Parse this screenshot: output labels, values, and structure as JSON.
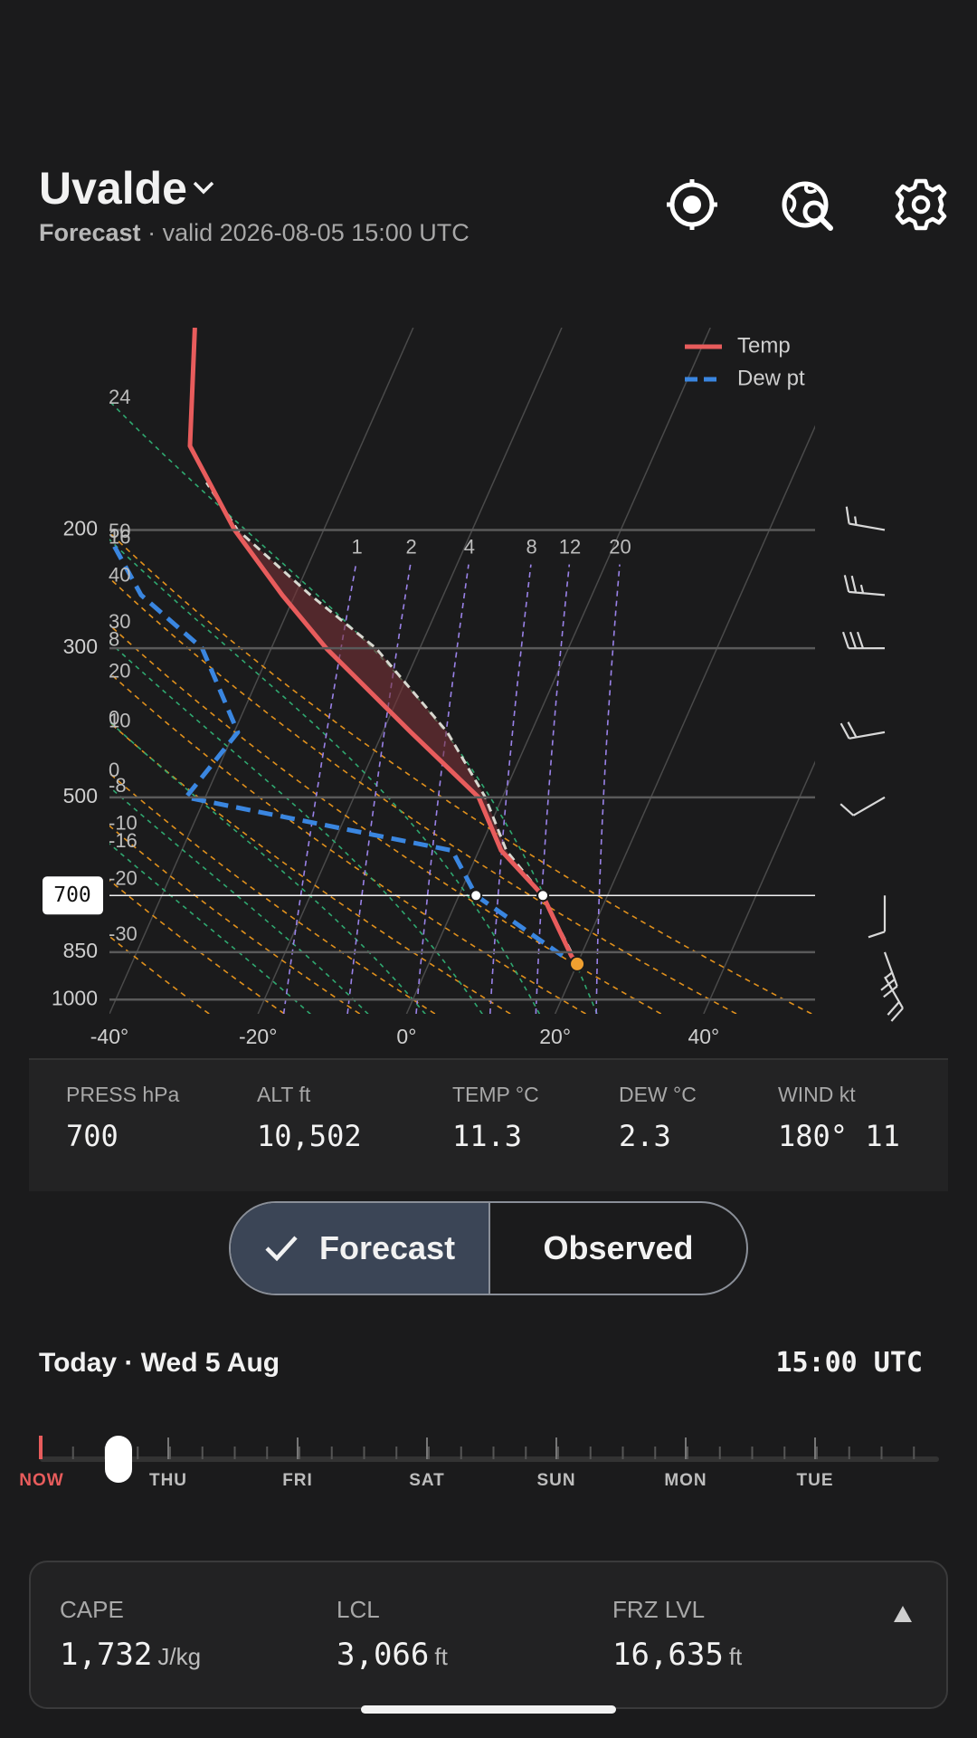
{
  "header": {
    "title": "Uvalde",
    "mode": "Forecast",
    "valid": "· valid 2026-08-05 15:00 UTC"
  },
  "chart_data": {
    "type": "skew-t",
    "ylim": [
      1050,
      100
    ],
    "yscale": "log",
    "yticks": [
      1000,
      850,
      700,
      500,
      300,
      200
    ],
    "xlim": [
      -40,
      55
    ],
    "xticks": [
      {
        "value": -40,
        "label": "-40°"
      },
      {
        "value": -20,
        "label": "-20°"
      },
      {
        "value": 0,
        "label": "0°"
      },
      {
        "value": 20,
        "label": "20°"
      },
      {
        "value": 40,
        "label": "40°"
      }
    ],
    "selected_pressure": 700,
    "series": [
      {
        "name": "Temp",
        "color": "#e85c5c",
        "pressures": [
          885,
          860,
          700,
          600,
          500,
          400,
          300,
          250,
          200,
          150,
          100
        ],
        "values": [
          20.0,
          18.7,
          11.3,
          3.0,
          -3.2,
          -16.2,
          -32.6,
          -41.7,
          -52.0,
          -63.0,
          -69.4
        ]
      },
      {
        "name": "Dew pt",
        "color": "#3a86e0",
        "pressures": [
          860,
          700,
          600,
          500,
          400,
          300,
          250,
          210
        ],
        "values": [
          17.5,
          2.3,
          -3.6,
          -42.6,
          -39.5,
          -49.3,
          -60.7,
          -67.5
        ]
      }
    ],
    "parcel": {
      "color": "#d8d8d0",
      "pressures": [
        885,
        700,
        600,
        500,
        400,
        300,
        250,
        200,
        170
      ],
      "values": [
        20.0,
        11.3,
        3.7,
        -2.3,
        -11.3,
        -25.9,
        -37.9,
        -51.6,
        -58.6
      ]
    },
    "dry_adiabats": [
      50,
      40,
      30,
      20,
      10,
      0,
      -10,
      -20,
      -30
    ],
    "moist_adiabats": [
      24,
      16,
      8,
      0,
      -8,
      -16
    ],
    "mixing_ratios": [
      1,
      2,
      4,
      8,
      12,
      20
    ],
    "winds": {
      "pressures": [
        200,
        250,
        300,
        400,
        500,
        700,
        850,
        925
      ],
      "directions": [
        280,
        275,
        270,
        260,
        240,
        180,
        160,
        150
      ],
      "speeds": [
        15,
        25,
        30,
        20,
        10,
        11,
        25,
        20
      ]
    }
  },
  "readout": [
    {
      "label": "PRESS hPa",
      "value": "700"
    },
    {
      "label": "ALT ft",
      "value": "10,502"
    },
    {
      "label": "TEMP °C",
      "value": "11.3"
    },
    {
      "label": "DEW °C",
      "value": "2.3"
    },
    {
      "label": "WIND kt",
      "value": "180° 11"
    }
  ],
  "source_toggle": [
    "Forecast",
    "Observed"
  ],
  "time": {
    "date": "Today · Wed 5 Aug",
    "time": "15:00 UTC"
  },
  "timeline": {
    "now": "NOW",
    "days": [
      "THU",
      "FRI",
      "SAT",
      "SUN",
      "MON",
      "TUE"
    ]
  },
  "summary": [
    {
      "label": "CAPE",
      "value": "1,732",
      "unit": "J/kg"
    },
    {
      "label": "LCL",
      "value": "3,066",
      "unit": "ft"
    },
    {
      "label": "FRZ LVL",
      "value": "16,635",
      "unit": "ft"
    }
  ]
}
